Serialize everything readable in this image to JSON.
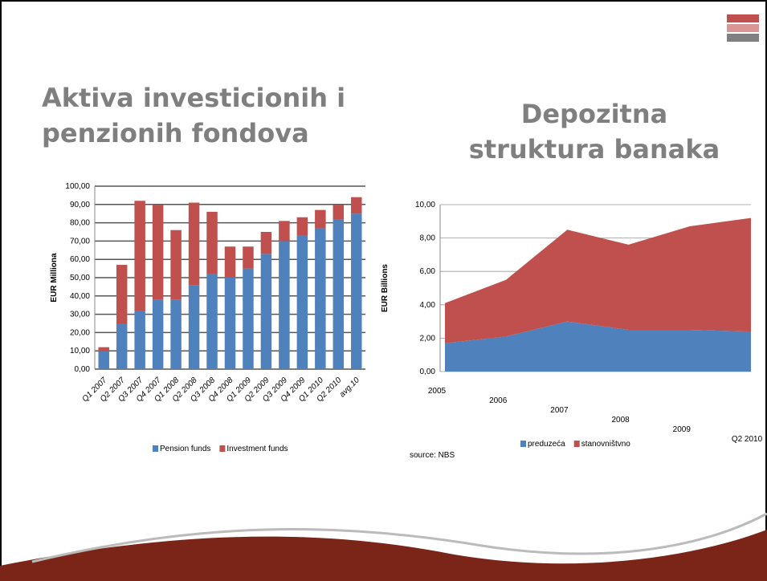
{
  "chart_data": [
    {
      "type": "bar",
      "stacked": true,
      "title": "Aktiva investicionih i penzionih fondova",
      "y_label": "EUR Milliona",
      "categories": [
        "Q1 2007",
        "Q2 2007",
        "Q3 2007",
        "Q4 2007",
        "Q1 2008",
        "Q2 2008",
        "Q3 2008",
        "Q4 2008",
        "Q1 2009",
        "Q2 2009",
        "Q3 2009",
        "Q4 2009",
        "Q1 2010",
        "Q2 2010",
        "avg.10"
      ],
      "series": [
        {
          "name": "Pension funds",
          "color": "#4f81bd",
          "values": [
            10,
            25,
            32,
            38,
            38,
            46,
            52,
            50,
            55,
            63,
            70,
            73,
            77,
            82,
            85
          ]
        },
        {
          "name": "Investment funds",
          "color": "#c0504d",
          "values": [
            2,
            32,
            60,
            52,
            38,
            45,
            34,
            17,
            12,
            12,
            11,
            10,
            10,
            8,
            9
          ]
        }
      ],
      "ylim": [
        0,
        100
      ],
      "yticks": [
        {
          "value": 0,
          "label": "0,00"
        },
        {
          "value": 10,
          "label": "10,00"
        },
        {
          "value": 20,
          "label": "20,00"
        },
        {
          "value": 30,
          "label": "30,00"
        },
        {
          "value": 40,
          "label": "40,00"
        },
        {
          "value": 50,
          "label": "50,00"
        },
        {
          "value": 60,
          "label": "60,00"
        },
        {
          "value": 70,
          "label": "70,00"
        },
        {
          "value": 80,
          "label": "80,00"
        },
        {
          "value": 90,
          "label": "90,00"
        },
        {
          "value": 100,
          "label": "100,00"
        }
      ],
      "grid": true,
      "legend": "bottom"
    },
    {
      "type": "area",
      "stacked": true,
      "title": "Depozitna struktura banaka",
      "y_label": "EUR Billions",
      "annotation": "source: NBS",
      "categories": [
        "2005",
        "2006",
        "2007",
        "2008",
        "2009",
        "Q2 2010"
      ],
      "series": [
        {
          "name": "preduzeća",
          "color": "#4f81bd",
          "values": [
            1.7,
            2.1,
            3.0,
            2.5,
            2.5,
            2.4
          ]
        },
        {
          "name": "stanovništvno",
          "color": "#c0504d",
          "values": [
            2.4,
            3.4,
            5.5,
            5.1,
            6.2,
            6.8
          ]
        }
      ],
      "ylim": [
        0,
        10
      ],
      "yticks": [
        {
          "value": 0,
          "label": "0,00"
        },
        {
          "value": 2,
          "label": "2,00"
        },
        {
          "value": 4,
          "label": "4,00"
        },
        {
          "value": 6,
          "label": "6,00"
        },
        {
          "value": 8,
          "label": "8,00"
        },
        {
          "value": 10,
          "label": "10,00"
        }
      ],
      "grid": true,
      "legend": "bottom"
    }
  ]
}
